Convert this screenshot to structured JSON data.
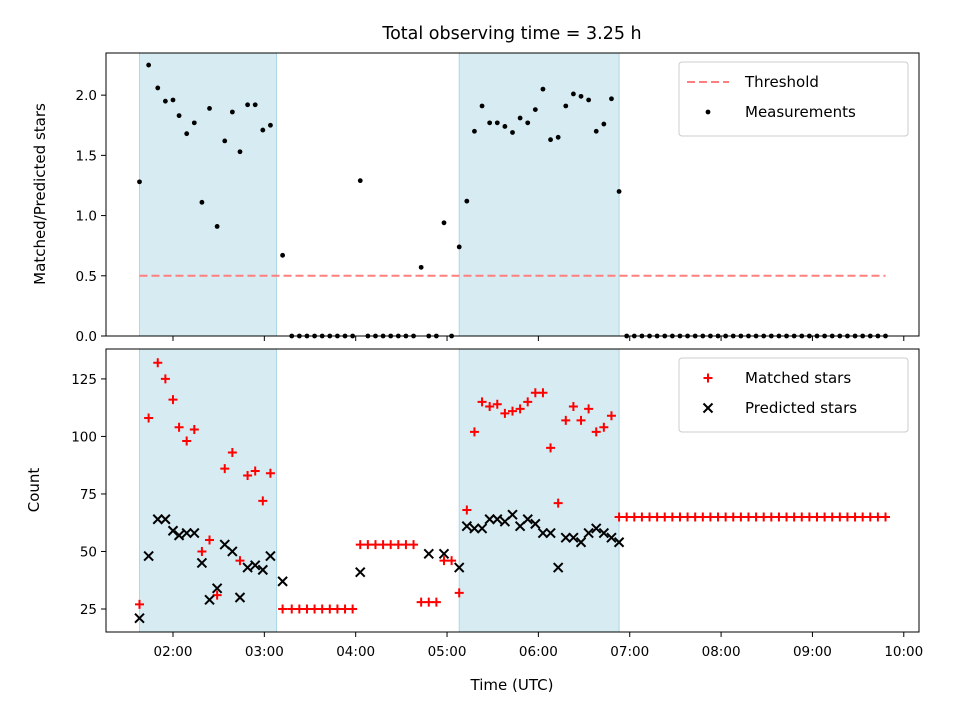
{
  "chart_data": {
    "type": "scatter",
    "title": "Total observing time = 3.25 h",
    "xlabel": "Time (UTC)",
    "xlim": [
      "01:16",
      "10:10"
    ],
    "xticks": [
      "02:00",
      "03:00",
      "04:00",
      "05:00",
      "06:00",
      "07:00",
      "08:00",
      "09:00",
      "10:00"
    ],
    "shaded_intervals": [
      [
        "01:38",
        "03:08"
      ],
      [
        "05:08",
        "06:53"
      ]
    ],
    "shade_color": "#add8e6",
    "panels": [
      {
        "ylabel": "Matched/Predicted stars",
        "ylim": [
          0,
          2.35
        ],
        "yticks": [
          "0.0",
          "0.5",
          "1.0",
          "1.5",
          "2.0"
        ],
        "legend_position": "upper right",
        "series": [
          {
            "name": "Threshold",
            "style": "dashed-line",
            "color": "#ff7f7f",
            "x": [
              "01:38",
              "09:48"
            ],
            "y": [
              0.5,
              0.5
            ]
          },
          {
            "name": "Measurements",
            "style": "dot",
            "color": "#000000",
            "x": [
              "01:38",
              "01:44",
              "01:50",
              "01:55",
              "02:00",
              "02:04",
              "02:09",
              "02:14",
              "02:19",
              "02:24",
              "02:29",
              "02:34",
              "02:39",
              "02:44",
              "02:49",
              "02:54",
              "02:59",
              "03:04",
              "03:12",
              "03:18",
              "03:23",
              "03:28",
              "03:33",
              "03:38",
              "03:43",
              "03:48",
              "03:53",
              "03:58",
              "04:03",
              "04:08",
              "04:13",
              "04:18",
              "04:23",
              "04:28",
              "04:33",
              "04:38",
              "04:43",
              "04:48",
              "04:53",
              "04:58",
              "05:03",
              "05:08",
              "05:13",
              "05:18",
              "05:23",
              "05:28",
              "05:33",
              "05:38",
              "05:43",
              "05:48",
              "05:53",
              "05:58",
              "06:03",
              "06:08",
              "06:13",
              "06:18",
              "06:23",
              "06:28",
              "06:33",
              "06:38",
              "06:43",
              "06:48",
              "06:53",
              "06:58",
              "07:03",
              "07:08",
              "07:13",
              "07:18",
              "07:23",
              "07:28",
              "07:33",
              "07:38",
              "07:43",
              "07:48",
              "07:53",
              "07:58",
              "08:03",
              "08:08",
              "08:13",
              "08:18",
              "08:23",
              "08:28",
              "08:33",
              "08:38",
              "08:43",
              "08:48",
              "08:53",
              "08:58",
              "09:03",
              "09:08",
              "09:13",
              "09:18",
              "09:23",
              "09:28",
              "09:33",
              "09:38",
              "09:43",
              "09:48"
            ],
            "y": [
              1.28,
              2.25,
              2.06,
              1.95,
              1.96,
              1.83,
              1.68,
              1.77,
              1.11,
              1.89,
              0.91,
              1.62,
              1.86,
              1.53,
              1.92,
              1.92,
              1.71,
              1.75,
              0.67,
              0,
              0,
              0,
              0,
              0,
              0,
              0,
              0,
              0,
              1.29,
              0,
              0,
              0,
              0,
              0,
              0,
              0,
              0.57,
              0,
              0,
              0.94,
              0,
              0.74,
              1.12,
              1.7,
              1.91,
              1.77,
              1.77,
              1.74,
              1.69,
              1.81,
              1.77,
              1.88,
              2.05,
              1.63,
              1.65,
              1.91,
              2.01,
              1.99,
              1.96,
              1.7,
              1.76,
              1.97,
              1.2,
              0,
              0,
              0,
              0,
              0,
              0,
              0,
              0,
              0,
              0,
              0,
              0,
              0,
              0,
              0,
              0,
              0,
              0,
              0,
              0,
              0,
              0,
              0,
              0,
              0,
              0,
              0,
              0,
              0,
              0,
              0,
              0,
              0,
              0,
              0
            ]
          }
        ]
      },
      {
        "ylabel": "Count",
        "ylim": [
          15,
          138
        ],
        "yticks": [
          "25",
          "50",
          "75",
          "100",
          "125"
        ],
        "legend_position": "upper right",
        "series": [
          {
            "name": "Matched stars",
            "style": "plus",
            "color": "#ff0000",
            "x": [
              "01:38",
              "01:44",
              "01:50",
              "01:55",
              "02:00",
              "02:04",
              "02:09",
              "02:14",
              "02:19",
              "02:24",
              "02:29",
              "02:34",
              "02:39",
              "02:44",
              "02:49",
              "02:54",
              "02:59",
              "03:04",
              "03:12",
              "03:18",
              "03:23",
              "03:28",
              "03:33",
              "03:38",
              "03:43",
              "03:48",
              "03:53",
              "03:58",
              "04:03",
              "04:08",
              "04:13",
              "04:18",
              "04:23",
              "04:28",
              "04:33",
              "04:38",
              "04:43",
              "04:48",
              "04:53",
              "04:58",
              "05:03",
              "05:08",
              "05:13",
              "05:18",
              "05:23",
              "05:28",
              "05:33",
              "05:38",
              "05:43",
              "05:48",
              "05:53",
              "05:58",
              "06:03",
              "06:08",
              "06:13",
              "06:18",
              "06:23",
              "06:28",
              "06:33",
              "06:38",
              "06:43",
              "06:48",
              "06:53",
              "06:58",
              "07:03",
              "07:08",
              "07:13",
              "07:18",
              "07:23",
              "07:28",
              "07:33",
              "07:38",
              "07:43",
              "07:48",
              "07:53",
              "07:58",
              "08:03",
              "08:08",
              "08:13",
              "08:18",
              "08:23",
              "08:28",
              "08:33",
              "08:38",
              "08:43",
              "08:48",
              "08:53",
              "08:58",
              "09:03",
              "09:08",
              "09:13",
              "09:18",
              "09:23",
              "09:28",
              "09:33",
              "09:38",
              "09:43",
              "09:48"
            ],
            "y": [
              27,
              108,
              132,
              125,
              116,
              104,
              98,
              103,
              50,
              55,
              31,
              86,
              93,
              46,
              83,
              85,
              72,
              84,
              25,
              25,
              25,
              25,
              25,
              25,
              25,
              25,
              25,
              25,
              53,
              53,
              53,
              53,
              53,
              53,
              53,
              53,
              28,
              28,
              28,
              46,
              46,
              32,
              68,
              102,
              115,
              113,
              114,
              110,
              111,
              112,
              115,
              119,
              119,
              95,
              71,
              107,
              113,
              107,
              112,
              102,
              104,
              109,
              65,
              65,
              65,
              65,
              65,
              65,
              65,
              65,
              65,
              65,
              65,
              65,
              65,
              65,
              65,
              65,
              65,
              65,
              65,
              65,
              65,
              65,
              65,
              65,
              65,
              65,
              65,
              65,
              65,
              65,
              65,
              65,
              65,
              65,
              65,
              65
            ]
          },
          {
            "name": "Predicted stars",
            "style": "x",
            "color": "#000000",
            "x": [
              "01:38",
              "01:44",
              "01:50",
              "01:55",
              "02:00",
              "02:04",
              "02:09",
              "02:14",
              "02:19",
              "02:24",
              "02:29",
              "02:34",
              "02:39",
              "02:44",
              "02:49",
              "02:54",
              "02:59",
              "03:04",
              "03:12",
              "04:03",
              "04:48",
              "04:58",
              "05:08",
              "05:13",
              "05:18",
              "05:23",
              "05:28",
              "05:33",
              "05:38",
              "05:43",
              "05:48",
              "05:53",
              "05:58",
              "06:03",
              "06:08",
              "06:13",
              "06:18",
              "06:23",
              "06:28",
              "06:33",
              "06:38",
              "06:43",
              "06:48",
              "06:53"
            ],
            "y": [
              21,
              48,
              64,
              64,
              59,
              57,
              58,
              58,
              45,
              29,
              34,
              53,
              50,
              30,
              43,
              44,
              42,
              48,
              37,
              41,
              49,
              49,
              43,
              61,
              60,
              60,
              64,
              64,
              63,
              66,
              61,
              64,
              62,
              58,
              58,
              43,
              56,
              56,
              54,
              58,
              60,
              58,
              56,
              54
            ]
          }
        ]
      }
    ]
  }
}
